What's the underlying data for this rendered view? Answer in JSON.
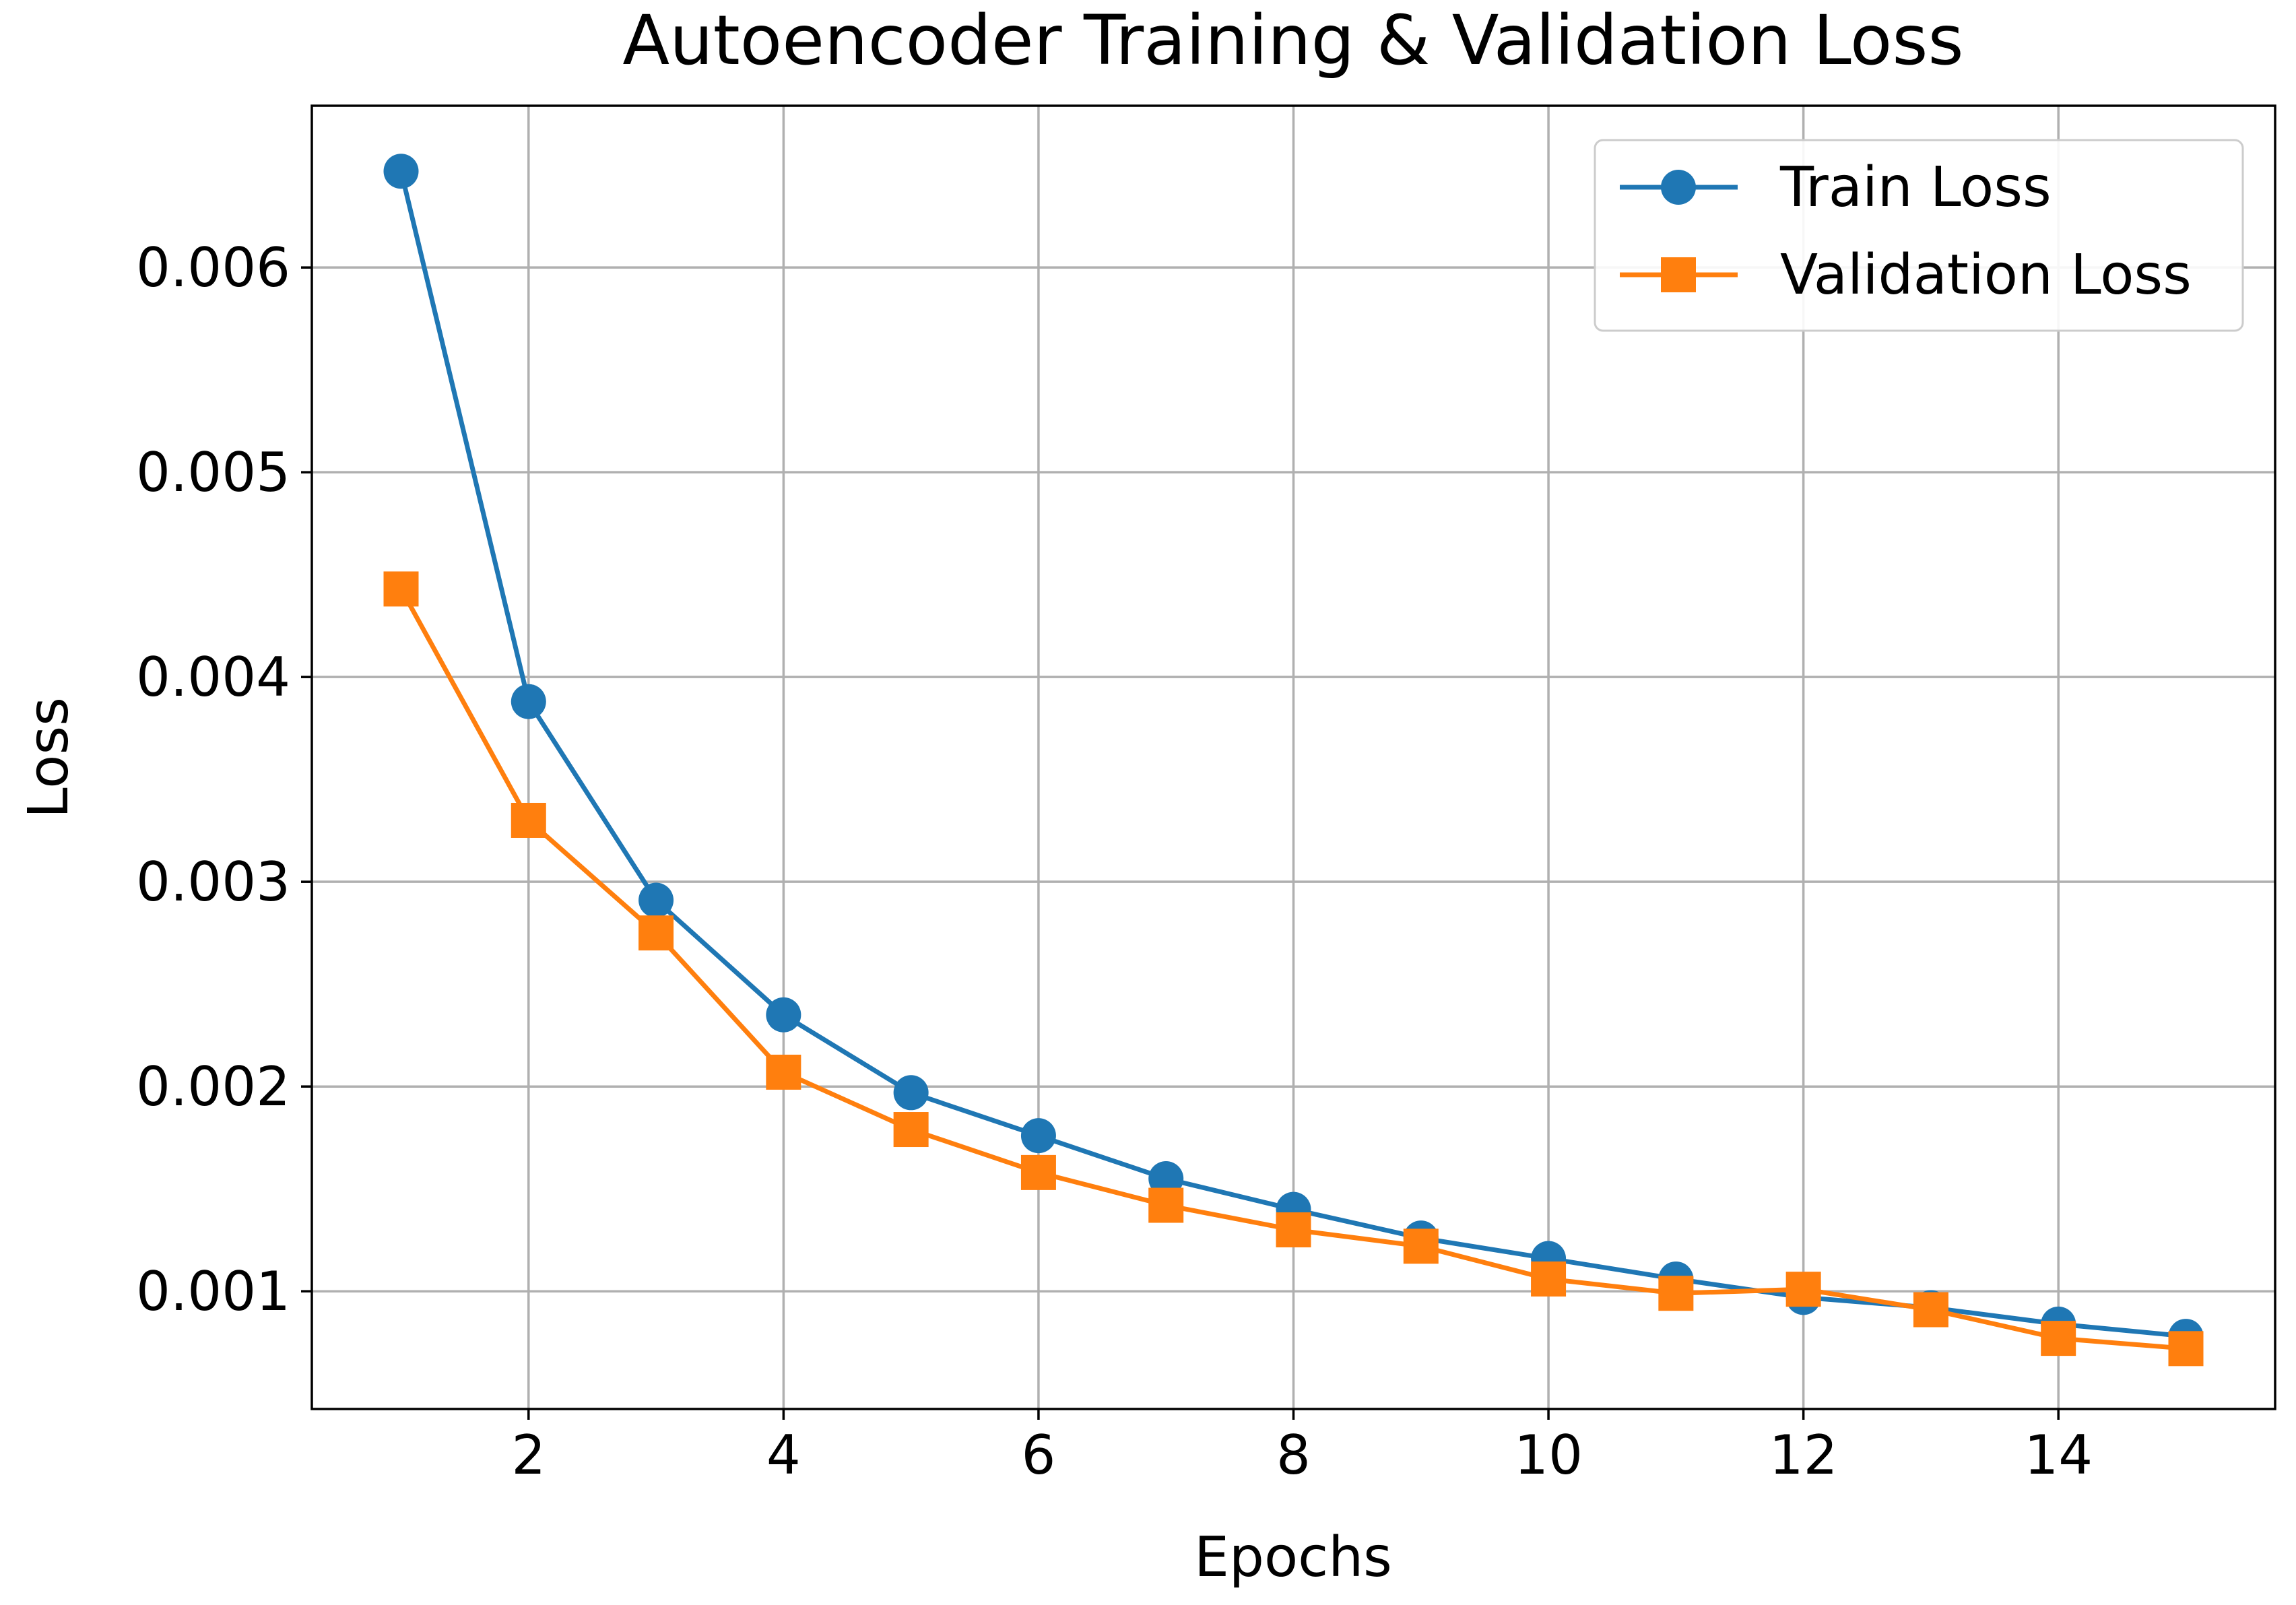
{
  "chart_data": {
    "type": "line",
    "title": "Autoencoder Training & Validation Loss",
    "xlabel": "Epochs",
    "ylabel": "Loss",
    "x": [
      1,
      2,
      3,
      4,
      5,
      6,
      7,
      8,
      9,
      10,
      11,
      12,
      13,
      14,
      15
    ],
    "xlim": [
      0.3,
      15.7
    ],
    "ylim": [
      0.000425,
      0.00679
    ],
    "xticks": [
      2,
      4,
      6,
      8,
      10,
      12,
      14
    ],
    "xtick_labels": [
      "2",
      "4",
      "6",
      "8",
      "10",
      "12",
      "14"
    ],
    "yticks": [
      0.001,
      0.002,
      0.003,
      0.004,
      0.005,
      0.006
    ],
    "ytick_labels": [
      "0.001",
      "0.002",
      "0.003",
      "0.004",
      "0.005",
      "0.006"
    ],
    "grid": true,
    "legend_position": "top-right",
    "series": [
      {
        "name": "Train Loss",
        "color": "#1f77b4",
        "marker": "circle",
        "values": [
          0.00647,
          0.00388,
          0.00291,
          0.00235,
          0.00197,
          0.00176,
          0.00155,
          0.0014,
          0.00126,
          0.00116,
          0.00106,
          0.00097,
          0.00092,
          0.00084,
          0.00078
        ]
      },
      {
        "name": "Validation Loss",
        "color": "#ff7f0e",
        "marker": "square",
        "values": [
          0.00443,
          0.0033,
          0.00275,
          0.00207,
          0.00179,
          0.00158,
          0.00142,
          0.0013,
          0.00122,
          0.00106,
          0.00099,
          0.00101,
          0.00091,
          0.00077,
          0.00072
        ]
      }
    ]
  }
}
